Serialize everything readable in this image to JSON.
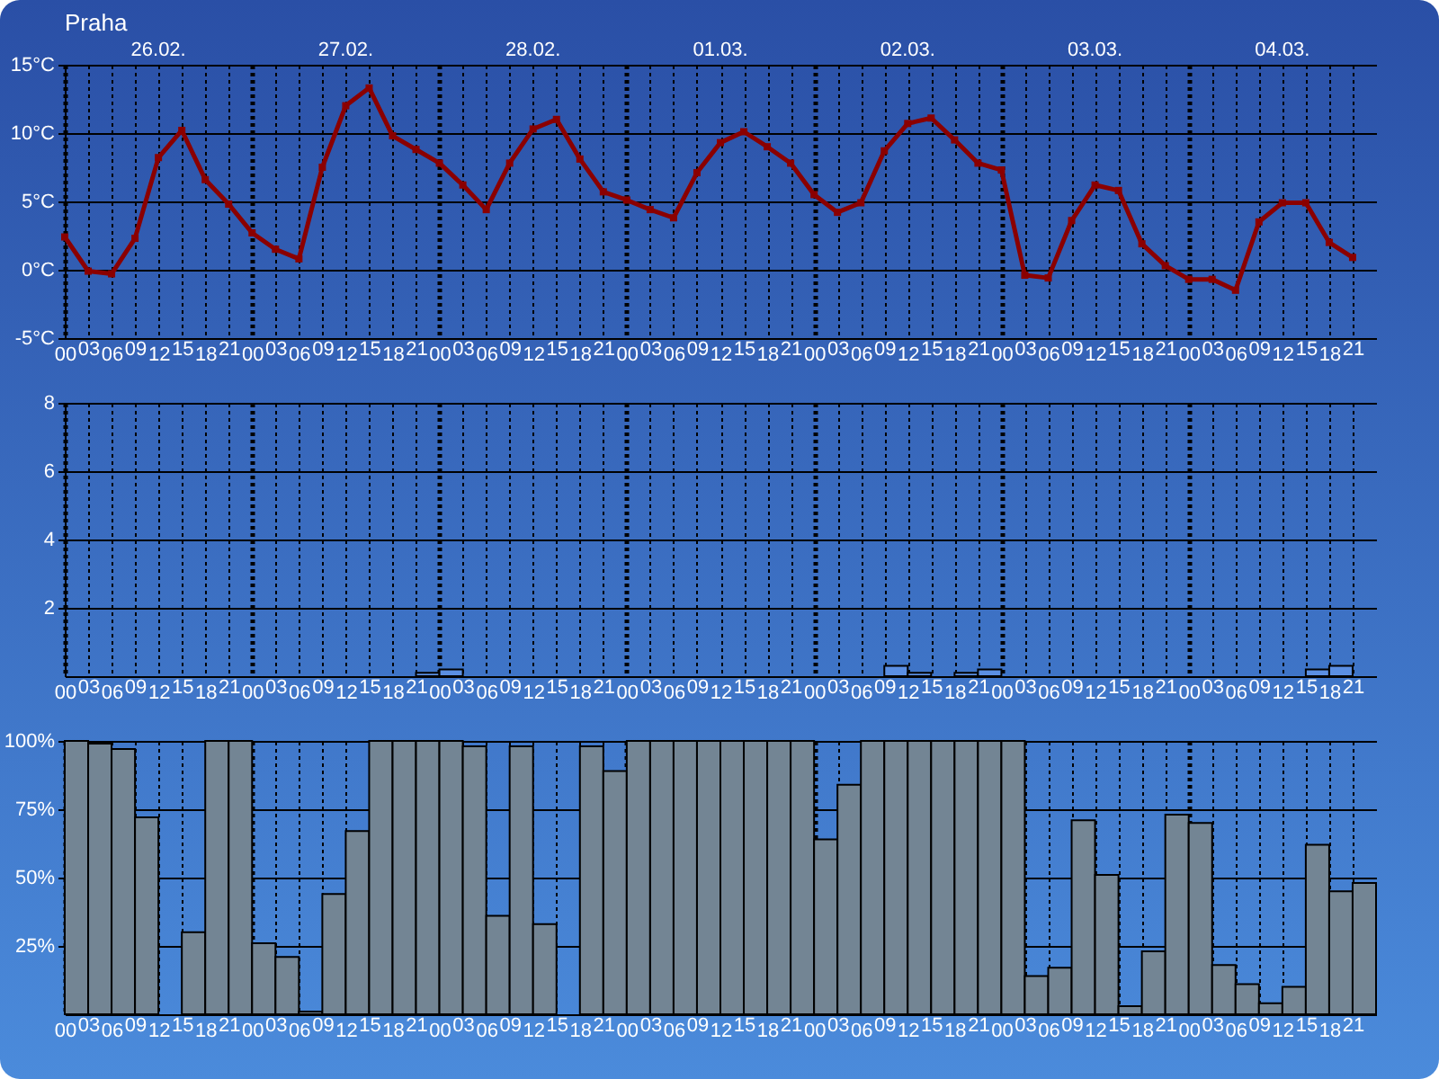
{
  "chart_data": [
    {
      "type": "line",
      "title": "Praha",
      "x": [
        0,
        3,
        6,
        9,
        12,
        15,
        18,
        21,
        24,
        27,
        30,
        33,
        36,
        39,
        42,
        45,
        48,
        51,
        54,
        57,
        60,
        63,
        66,
        69,
        72,
        75,
        78,
        81,
        84,
        87,
        90,
        93,
        96,
        99,
        102,
        105,
        108,
        111,
        114,
        117,
        120,
        123,
        126,
        129,
        132,
        135,
        138,
        141,
        144,
        147,
        150,
        153,
        156,
        159,
        162,
        165
      ],
      "values": [
        2.4,
        -0.1,
        -0.3,
        2.3,
        8.2,
        10.2,
        6.6,
        4.8,
        2.7,
        1.5,
        0.8,
        7.5,
        12.0,
        13.3,
        9.8,
        8.8,
        7.8,
        6.2,
        4.4,
        7.8,
        10.3,
        11.0,
        8.1,
        5.7,
        5.1,
        4.4,
        3.8,
        7.1,
        9.3,
        10.1,
        9.0,
        7.8,
        5.5,
        4.2,
        4.9,
        8.7,
        10.7,
        11.1,
        9.5,
        7.8,
        7.3,
        -0.4,
        -0.6,
        3.6,
        6.2,
        5.8,
        1.9,
        0.3,
        -0.7,
        -0.7,
        -1.5,
        3.5,
        4.9,
        4.9,
        2.0,
        0.9
      ],
      "color": "#8b0000",
      "marker": "square",
      "xlim": [
        0,
        168
      ],
      "xticks": [
        {
          "value": 0,
          "label": "00"
        },
        {
          "value": 3,
          "label": "03"
        },
        {
          "value": 6,
          "label": "06"
        },
        {
          "value": 9,
          "label": "09"
        },
        {
          "value": 12,
          "label": "12"
        },
        {
          "value": 15,
          "label": "15"
        },
        {
          "value": 18,
          "label": "18"
        },
        {
          "value": 21,
          "label": "21"
        },
        {
          "value": 24,
          "label": "00"
        },
        {
          "value": 27,
          "label": "03"
        },
        {
          "value": 30,
          "label": "06"
        },
        {
          "value": 33,
          "label": "09"
        },
        {
          "value": 36,
          "label": "12"
        },
        {
          "value": 39,
          "label": "15"
        },
        {
          "value": 42,
          "label": "18"
        },
        {
          "value": 45,
          "label": "21"
        },
        {
          "value": 48,
          "label": "00"
        },
        {
          "value": 51,
          "label": "03"
        },
        {
          "value": 54,
          "label": "06"
        },
        {
          "value": 57,
          "label": "09"
        },
        {
          "value": 60,
          "label": "12"
        },
        {
          "value": 63,
          "label": "15"
        },
        {
          "value": 66,
          "label": "18"
        },
        {
          "value": 69,
          "label": "21"
        },
        {
          "value": 72,
          "label": "00"
        },
        {
          "value": 75,
          "label": "03"
        },
        {
          "value": 78,
          "label": "06"
        },
        {
          "value": 81,
          "label": "09"
        },
        {
          "value": 84,
          "label": "12"
        },
        {
          "value": 87,
          "label": "15"
        },
        {
          "value": 90,
          "label": "18"
        },
        {
          "value": 93,
          "label": "21"
        },
        {
          "value": 96,
          "label": "00"
        },
        {
          "value": 99,
          "label": "03"
        },
        {
          "value": 102,
          "label": "06"
        },
        {
          "value": 105,
          "label": "09"
        },
        {
          "value": 108,
          "label": "12"
        },
        {
          "value": 111,
          "label": "15"
        },
        {
          "value": 114,
          "label": "18"
        },
        {
          "value": 117,
          "label": "21"
        },
        {
          "value": 120,
          "label": "00"
        },
        {
          "value": 123,
          "label": "03"
        },
        {
          "value": 126,
          "label": "06"
        },
        {
          "value": 129,
          "label": "09"
        },
        {
          "value": 132,
          "label": "12"
        },
        {
          "value": 135,
          "label": "15"
        },
        {
          "value": 138,
          "label": "18"
        },
        {
          "value": 141,
          "label": "21"
        },
        {
          "value": 144,
          "label": "00"
        },
        {
          "value": 147,
          "label": "03"
        },
        {
          "value": 150,
          "label": "06"
        },
        {
          "value": 153,
          "label": "09"
        },
        {
          "value": 156,
          "label": "12"
        },
        {
          "value": 159,
          "label": "15"
        },
        {
          "value": 162,
          "label": "18"
        },
        {
          "value": 165,
          "label": "21"
        }
      ],
      "ylim": [
        -5,
        15
      ],
      "yticks": [
        {
          "value": -5,
          "label": "-5°C"
        },
        {
          "value": 0,
          "label": "0°C"
        },
        {
          "value": 5,
          "label": "5°C"
        },
        {
          "value": 10,
          "label": "10°C"
        },
        {
          "value": 15,
          "label": "15°C"
        }
      ],
      "annotations": [
        "26.02.",
        "27.02.",
        "28.02.",
        "01.03.",
        "02.03.",
        "03.03.",
        "04.03."
      ],
      "grid": true
    },
    {
      "type": "bar",
      "x": [
        46.5,
        49.5,
        52.5,
        55.5,
        58.5,
        61.5,
        64.5,
        67.5,
        70.5,
        73.5,
        76.5,
        79.5,
        82.5,
        85.5,
        88.5,
        91.5,
        94.5,
        97.5,
        100.5,
        103.5,
        106.5,
        109.5,
        112.5,
        115.5,
        118.5,
        121.5,
        124.5,
        127.5,
        130.5,
        133.5,
        136.5,
        139.5,
        142.5,
        145.5,
        148.5,
        151.5,
        154.5,
        157.5,
        160.5,
        163.5
      ],
      "values": [
        0.1,
        0.2,
        null,
        null,
        null,
        null,
        null,
        null,
        null,
        null,
        null,
        null,
        null,
        null,
        null,
        null,
        null,
        null,
        null,
        null,
        0.3,
        0.1,
        null,
        0.1,
        0.2,
        null,
        null,
        null,
        null,
        null,
        null,
        null,
        null,
        null,
        null,
        null,
        null,
        null,
        0.2,
        0.3
      ],
      "color": "#5b8fe2",
      "xlim": [
        0,
        168
      ],
      "xticks": [
        {
          "value": 0,
          "label": "00"
        },
        {
          "value": 3,
          "label": "03"
        },
        {
          "value": 6,
          "label": "06"
        },
        {
          "value": 9,
          "label": "09"
        },
        {
          "value": 12,
          "label": "12"
        },
        {
          "value": 15,
          "label": "15"
        },
        {
          "value": 18,
          "label": "18"
        },
        {
          "value": 21,
          "label": "21"
        },
        {
          "value": 24,
          "label": "00"
        },
        {
          "value": 27,
          "label": "03"
        },
        {
          "value": 30,
          "label": "06"
        },
        {
          "value": 33,
          "label": "09"
        },
        {
          "value": 36,
          "label": "12"
        },
        {
          "value": 39,
          "label": "15"
        },
        {
          "value": 42,
          "label": "18"
        },
        {
          "value": 45,
          "label": "21"
        },
        {
          "value": 48,
          "label": "00"
        },
        {
          "value": 51,
          "label": "03"
        },
        {
          "value": 54,
          "label": "06"
        },
        {
          "value": 57,
          "label": "09"
        },
        {
          "value": 60,
          "label": "12"
        },
        {
          "value": 63,
          "label": "15"
        },
        {
          "value": 66,
          "label": "18"
        },
        {
          "value": 69,
          "label": "21"
        },
        {
          "value": 72,
          "label": "00"
        },
        {
          "value": 75,
          "label": "03"
        },
        {
          "value": 78,
          "label": "06"
        },
        {
          "value": 81,
          "label": "09"
        },
        {
          "value": 84,
          "label": "12"
        },
        {
          "value": 87,
          "label": "15"
        },
        {
          "value": 90,
          "label": "18"
        },
        {
          "value": 93,
          "label": "21"
        },
        {
          "value": 96,
          "label": "00"
        },
        {
          "value": 99,
          "label": "03"
        },
        {
          "value": 102,
          "label": "06"
        },
        {
          "value": 105,
          "label": "09"
        },
        {
          "value": 108,
          "label": "12"
        },
        {
          "value": 111,
          "label": "15"
        },
        {
          "value": 114,
          "label": "18"
        },
        {
          "value": 117,
          "label": "21"
        },
        {
          "value": 120,
          "label": "00"
        },
        {
          "value": 123,
          "label": "03"
        },
        {
          "value": 126,
          "label": "06"
        },
        {
          "value": 129,
          "label": "09"
        },
        {
          "value": 132,
          "label": "12"
        },
        {
          "value": 135,
          "label": "15"
        },
        {
          "value": 138,
          "label": "18"
        },
        {
          "value": 141,
          "label": "21"
        },
        {
          "value": 144,
          "label": "00"
        },
        {
          "value": 147,
          "label": "03"
        },
        {
          "value": 150,
          "label": "06"
        },
        {
          "value": 153,
          "label": "09"
        },
        {
          "value": 156,
          "label": "12"
        },
        {
          "value": 159,
          "label": "15"
        },
        {
          "value": 162,
          "label": "18"
        },
        {
          "value": 165,
          "label": "21"
        }
      ],
      "ylim": [
        0,
        8
      ],
      "yticks": [
        2,
        4,
        6,
        8
      ],
      "grid": true
    },
    {
      "type": "bar",
      "x": [
        1.5,
        4.5,
        7.5,
        10.5,
        13.5,
        16.5,
        19.5,
        22.5,
        25.5,
        28.5,
        31.5,
        34.5,
        37.5,
        40.5,
        43.5,
        46.5,
        49.5,
        52.5,
        55.5,
        58.5,
        61.5,
        64.5,
        67.5,
        70.5,
        73.5,
        76.5,
        79.5,
        82.5,
        85.5,
        88.5,
        91.5,
        94.5,
        97.5,
        100.5,
        103.5,
        106.5,
        109.5,
        112.5,
        115.5,
        118.5,
        121.5,
        124.5,
        127.5,
        130.5,
        133.5,
        136.5,
        139.5,
        142.5,
        145.5,
        148.5,
        151.5,
        154.5,
        157.5,
        160.5,
        163.5,
        166.5
      ],
      "values": [
        100,
        99,
        97,
        72,
        null,
        30,
        100,
        100,
        26,
        21,
        1,
        44,
        67,
        100,
        100,
        100,
        100,
        98,
        36,
        98,
        33,
        null,
        98,
        89,
        100,
        100,
        100,
        100,
        100,
        100,
        100,
        100,
        64,
        84,
        100,
        100,
        100,
        100,
        100,
        100,
        100,
        14,
        17,
        71,
        51,
        3,
        23,
        73,
        70,
        18,
        11,
        4,
        10,
        62,
        45,
        48
      ],
      "color": "#738594",
      "xlim": [
        0,
        168
      ],
      "xticks": [
        {
          "value": 0,
          "label": "00"
        },
        {
          "value": 3,
          "label": "03"
        },
        {
          "value": 6,
          "label": "06"
        },
        {
          "value": 9,
          "label": "09"
        },
        {
          "value": 12,
          "label": "12"
        },
        {
          "value": 15,
          "label": "15"
        },
        {
          "value": 18,
          "label": "18"
        },
        {
          "value": 21,
          "label": "21"
        },
        {
          "value": 24,
          "label": "00"
        },
        {
          "value": 27,
          "label": "03"
        },
        {
          "value": 30,
          "label": "06"
        },
        {
          "value": 33,
          "label": "09"
        },
        {
          "value": 36,
          "label": "12"
        },
        {
          "value": 39,
          "label": "15"
        },
        {
          "value": 42,
          "label": "18"
        },
        {
          "value": 45,
          "label": "21"
        },
        {
          "value": 48,
          "label": "00"
        },
        {
          "value": 51,
          "label": "03"
        },
        {
          "value": 54,
          "label": "06"
        },
        {
          "value": 57,
          "label": "09"
        },
        {
          "value": 60,
          "label": "12"
        },
        {
          "value": 63,
          "label": "15"
        },
        {
          "value": 66,
          "label": "18"
        },
        {
          "value": 69,
          "label": "21"
        },
        {
          "value": 72,
          "label": "00"
        },
        {
          "value": 75,
          "label": "03"
        },
        {
          "value": 78,
          "label": "06"
        },
        {
          "value": 81,
          "label": "09"
        },
        {
          "value": 84,
          "label": "12"
        },
        {
          "value": 87,
          "label": "15"
        },
        {
          "value": 90,
          "label": "18"
        },
        {
          "value": 93,
          "label": "21"
        },
        {
          "value": 96,
          "label": "00"
        },
        {
          "value": 99,
          "label": "03"
        },
        {
          "value": 102,
          "label": "06"
        },
        {
          "value": 105,
          "label": "09"
        },
        {
          "value": 108,
          "label": "12"
        },
        {
          "value": 111,
          "label": "15"
        },
        {
          "value": 114,
          "label": "18"
        },
        {
          "value": 117,
          "label": "21"
        },
        {
          "value": 120,
          "label": "00"
        },
        {
          "value": 123,
          "label": "03"
        },
        {
          "value": 126,
          "label": "06"
        },
        {
          "value": 129,
          "label": "09"
        },
        {
          "value": 132,
          "label": "12"
        },
        {
          "value": 135,
          "label": "15"
        },
        {
          "value": 138,
          "label": "18"
        },
        {
          "value": 141,
          "label": "21"
        },
        {
          "value": 144,
          "label": "00"
        },
        {
          "value": 147,
          "label": "03"
        },
        {
          "value": 150,
          "label": "06"
        },
        {
          "value": 153,
          "label": "09"
        },
        {
          "value": 156,
          "label": "12"
        },
        {
          "value": 159,
          "label": "15"
        },
        {
          "value": 162,
          "label": "18"
        },
        {
          "value": 165,
          "label": "21"
        }
      ],
      "ylim": [
        0,
        100
      ],
      "yticks": [
        {
          "value": 25,
          "label": "25%"
        },
        {
          "value": 50,
          "label": "50%"
        },
        {
          "value": 75,
          "label": "75%"
        },
        {
          "value": 100,
          "label": "100%"
        }
      ],
      "grid": true
    }
  ]
}
